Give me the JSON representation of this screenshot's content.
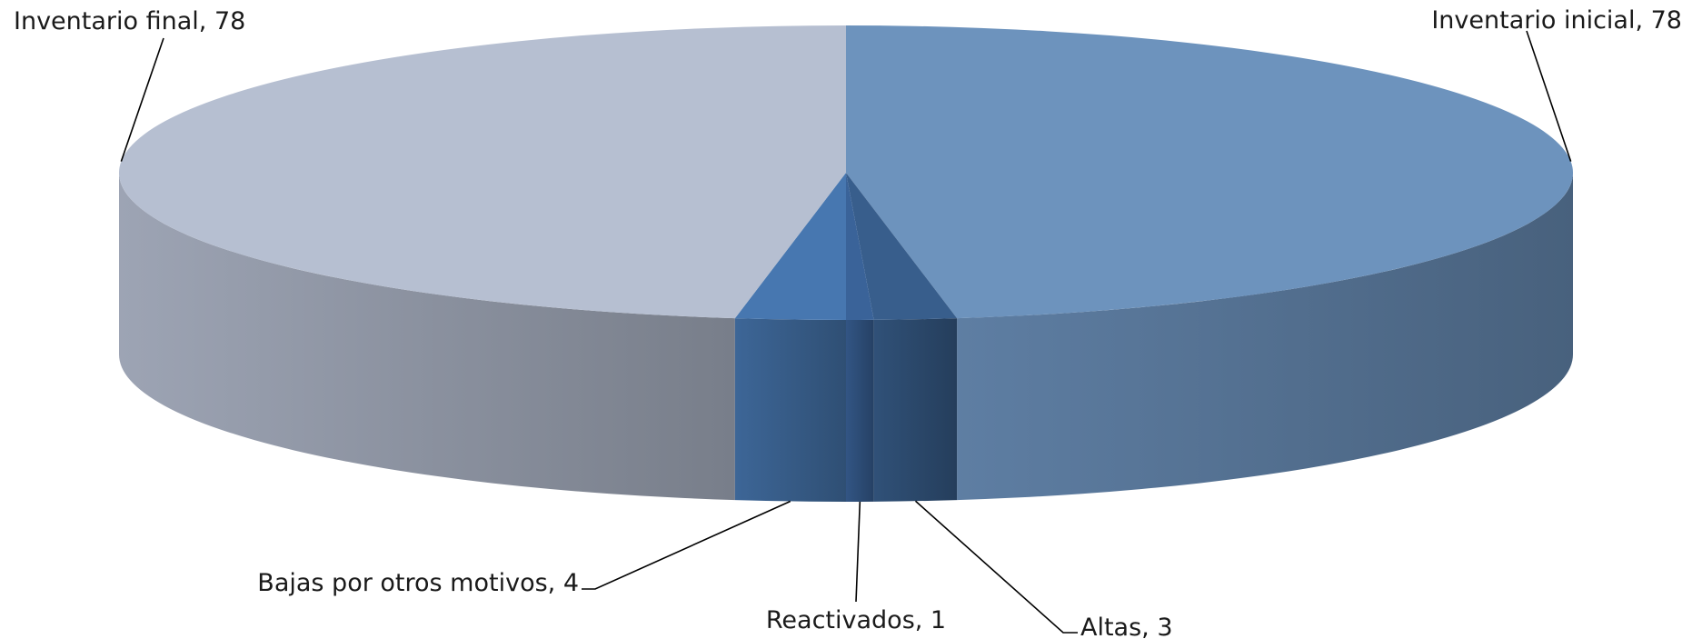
{
  "chart_data": {
    "type": "pie",
    "variant": "3d",
    "title": "",
    "categories": [
      "Inventario inicial",
      "Altas",
      "Reactivados",
      "Bajas por otros motivos",
      "Inventario final"
    ],
    "values": [
      78,
      3,
      1,
      4,
      78
    ],
    "colors": [
      "#6d93bd",
      "#385e8c",
      "#3a6399",
      "#4777b0",
      "#b6bfd1"
    ],
    "data_labels": [
      "Inventario inicial, 78",
      "Altas, 3",
      "Reactivados, 1",
      "Bajas por otros motivos, 4",
      "Inventario final, 78"
    ],
    "legend": "none"
  }
}
